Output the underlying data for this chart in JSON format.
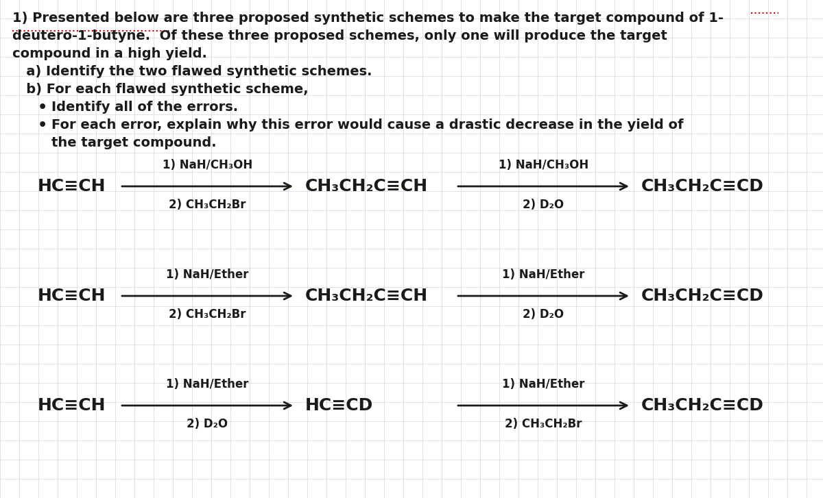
{
  "bg_color": "#ffffff",
  "grid_color": "#c8d8e8",
  "text_color": "#1a1a1a",
  "title_lines": [
    "1) Presented below are three proposed synthetic schemes to make the target compound of 1-",
    "deutero-1-butyne.  Of these three proposed schemes, only one will produce the target",
    "compound in a high yield.",
    "   a) Identify the two flawed synthetic schemes.",
    "   b) For each flawed synthetic scheme,"
  ],
  "bullet1": "Identify all of the errors.",
  "bullet2": "For each error, explain why this error would cause a drastic decrease in the yield of",
  "bullet2b": "the target compound.",
  "scheme1": {
    "reactant": "HC≡CH",
    "arrow1_above": "1) NaH/CH₃OH",
    "arrow1_below": "2) CH₃CH₂Br",
    "intermediate": "CH₃CH₂C≡CH",
    "arrow2_above": "1) NaH/CH₃OH",
    "arrow2_below": "2) D₂O",
    "product": "CH₃CH₂C≡CD"
  },
  "scheme2": {
    "reactant": "HC≡CH",
    "arrow1_above": "1) NaH/Ether",
    "arrow1_below": "2) CH₃CH₂Br",
    "intermediate": "CH₃CH₂C≡CH",
    "arrow2_above": "1) NaH/Ether",
    "arrow2_below": "2) D₂O",
    "product": "CH₃CH₂C≡CD"
  },
  "scheme3": {
    "reactant": "HC≡CH",
    "arrow1_above": "1) NaH/Ether",
    "arrow1_below": "2) D₂O",
    "intermediate": "HC≡CD",
    "arrow2_above": "1) NaH/Ether",
    "arrow2_below": "2) CH₃CH₂Br",
    "product": "CH₃CH₂C≡CD"
  },
  "underline_color": "#cc0000",
  "body_fontsize": 14,
  "scheme_fontsize": 18,
  "label_fontsize": 12
}
